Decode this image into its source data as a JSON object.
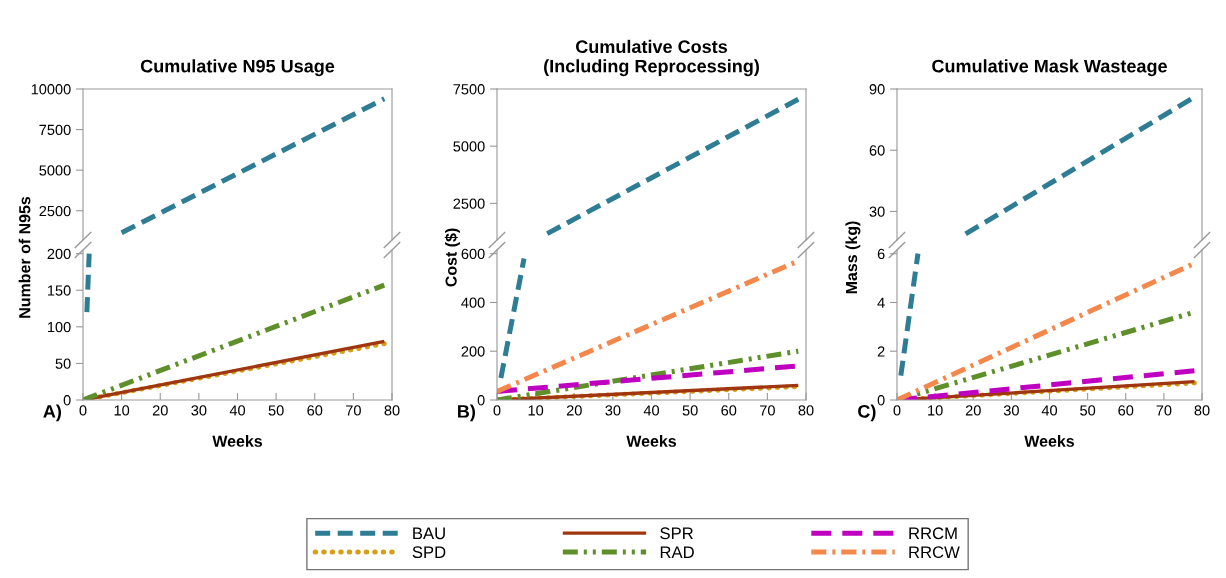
{
  "chart_data": [
    {
      "type": "line",
      "title": "Cumulative N95 Usage",
      "xlim": [
        0,
        80
      ],
      "ylim": [
        700,
        10000
      ],
      "yticks": [
        2500,
        5000,
        7500,
        10000
      ],
      "tick_labels": "y",
      "grid": false,
      "marker": "none",
      "series": [
        {
          "color": "#2e7d95",
          "line_style": "dashed",
          "x": [
            10,
            78
          ],
          "values": [
            1150,
            9400
          ]
        }
      ]
    },
    {
      "type": "line",
      "xlabel": "Weeks",
      "ylabel": "Number of N95s",
      "xlim": [
        0,
        80
      ],
      "xticks": [
        0,
        10,
        20,
        30,
        40,
        50,
        60,
        70,
        80
      ],
      "ylim": [
        0,
        205
      ],
      "yticks": [
        0,
        50,
        100,
        150,
        200
      ],
      "grid": false,
      "marker": "none",
      "annotations": [
        "A)"
      ],
      "series": [
        {
          "color": "#2e7d95",
          "line_style": "dashed",
          "x": [
            1,
            1.6
          ],
          "values": [
            120,
            200
          ]
        },
        {
          "color": "#d4a017",
          "line_style": "dotted",
          "x": [
            0,
            78
          ],
          "values": [
            0,
            77
          ]
        },
        {
          "color": "#a0360f",
          "line_style": "solid",
          "x": [
            0,
            78
          ],
          "values": [
            0,
            80
          ]
        },
        {
          "color": "#5f8f2a",
          "line_style": "dashdotdot",
          "x": [
            0,
            78
          ],
          "values": [
            0,
            157
          ]
        }
      ]
    },
    {
      "type": "line",
      "title": "Cumulative Costs\n(Including Reprocessing)",
      "xlim": [
        0,
        80
      ],
      "ylim": [
        900,
        7500
      ],
      "yticks": [
        2500,
        5000,
        7500
      ],
      "tick_labels": "y",
      "grid": false,
      "marker": "none",
      "series": [
        {
          "color": "#2e7d95",
          "line_style": "dashed",
          "x": [
            13,
            78
          ],
          "values": [
            1180,
            7050
          ]
        }
      ]
    },
    {
      "type": "line",
      "xlabel": "Weeks",
      "ylabel": "Cost ($)",
      "xlim": [
        0,
        80
      ],
      "xticks": [
        0,
        10,
        20,
        30,
        40,
        50,
        60,
        70,
        80
      ],
      "ylim": [
        0,
        615
      ],
      "yticks": [
        0,
        200,
        400,
        600
      ],
      "grid": false,
      "marker": "none",
      "legend": "bottom",
      "annotations": [
        "B)"
      ],
      "series": [
        {
          "name": "BAU",
          "color": "#2e7d95",
          "line_style": "dashed",
          "x": [
            1,
            7
          ],
          "values": [
            90,
            580
          ]
        },
        {
          "name": "SPD",
          "color": "#d4a017",
          "line_style": "dotted",
          "x": [
            0,
            78
          ],
          "values": [
            0,
            55
          ]
        },
        {
          "name": "SPR",
          "color": "#a0360f",
          "line_style": "solid",
          "x": [
            0,
            78
          ],
          "values": [
            0,
            60
          ]
        },
        {
          "name": "RAD",
          "color": "#5f8f2a",
          "line_style": "dashdotdot",
          "x": [
            0,
            78
          ],
          "values": [
            0,
            200
          ]
        },
        {
          "name": "RRCM",
          "color": "#c000c0",
          "line_style": "longdash",
          "x": [
            0,
            78
          ],
          "values": [
            35,
            140
          ]
        },
        {
          "name": "RRCW",
          "color": "#f4874b",
          "line_style": "dashdot",
          "x": [
            0,
            78
          ],
          "values": [
            35,
            570
          ]
        }
      ]
    },
    {
      "type": "line",
      "title": "Cumulative Mask Wasteage",
      "xlim": [
        0,
        80
      ],
      "ylim": [
        16,
        90
      ],
      "yticks": [
        30,
        60,
        90
      ],
      "tick_labels": "y",
      "grid": false,
      "marker": "none",
      "series": [
        {
          "color": "#2e7d95",
          "line_style": "dashed",
          "x": [
            18,
            78
          ],
          "values": [
            19,
            86
          ]
        }
      ]
    },
    {
      "type": "line",
      "xlabel": "Weeks",
      "ylabel": "Mass (kg)",
      "xlim": [
        0,
        80
      ],
      "xticks": [
        0,
        10,
        20,
        30,
        40,
        50,
        60,
        70,
        80
      ],
      "ylim": [
        0,
        6.15
      ],
      "yticks": [
        0,
        2,
        4,
        6
      ],
      "grid": false,
      "marker": "none",
      "annotations": [
        "C)"
      ],
      "series": [
        {
          "color": "#2e7d95",
          "line_style": "dashed",
          "x": [
            1,
            5.5
          ],
          "values": [
            1,
            6
          ]
        },
        {
          "color": "#d4a017",
          "line_style": "dotted",
          "x": [
            0,
            78
          ],
          "values": [
            0,
            0.7
          ]
        },
        {
          "color": "#a0360f",
          "line_style": "solid",
          "x": [
            0,
            78
          ],
          "values": [
            0,
            0.75
          ]
        },
        {
          "color": "#5f8f2a",
          "line_style": "dashdotdot",
          "x": [
            0,
            78
          ],
          "values": [
            0,
            3.6
          ]
        },
        {
          "color": "#c000c0",
          "line_style": "longdash",
          "x": [
            0,
            78
          ],
          "values": [
            0,
            1.2
          ]
        },
        {
          "color": "#f4874b",
          "line_style": "dashdot",
          "x": [
            0,
            78
          ],
          "values": [
            0,
            5.6
          ]
        }
      ]
    }
  ]
}
